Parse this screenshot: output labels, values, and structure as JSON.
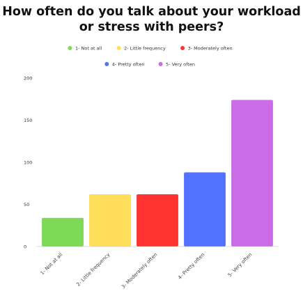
{
  "chart_data": {
    "type": "bar",
    "title": "How often do you talk about your workload or stress with peers?",
    "categories": [
      "1- Not at all",
      "2- Little frequency",
      "3- Moderately often",
      "4- Pretty often",
      "5- Very often"
    ],
    "values": [
      34,
      62,
      62,
      88,
      174
    ],
    "colors": [
      "#7ed957",
      "#ffde59",
      "#ff3131",
      "#5271ff",
      "#cb6ce6"
    ],
    "ylim": [
      0,
      200
    ],
    "yticks": [
      0,
      50,
      100,
      150,
      200
    ],
    "xlabel": "",
    "ylabel": "",
    "grid": false,
    "legend": {
      "placement": "top",
      "entries": [
        {
          "label": "1- Not at all",
          "color": "#7ed957"
        },
        {
          "label": "2- Little frequency",
          "color": "#ffde59"
        },
        {
          "label": "3- Moderately often",
          "color": "#ff3131"
        },
        {
          "label": "4- Pretty often",
          "color": "#5271ff"
        },
        {
          "label": "5- Very often",
          "color": "#cb6ce6"
        }
      ]
    }
  }
}
